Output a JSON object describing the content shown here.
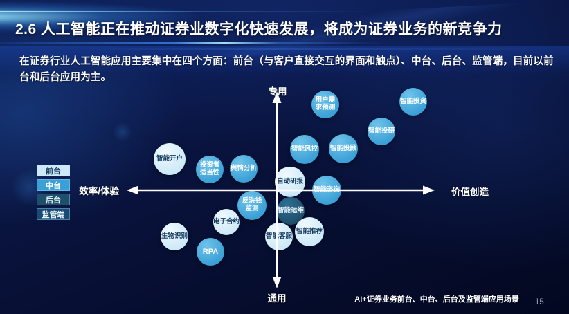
{
  "slide": {
    "title": "2.6 人工智能正在推动证券业数字化快速发展，将成为证券业务的新竞争力",
    "subtitle": "在证券行业人工智能应用主要集中在四个方面：前台（与客户直接交互的界面和触点）、中台、后台、监管端，目前以前台和后台应用为主。",
    "caption": "AI+证券业务前台、中台、后台及监管端应用场景",
    "page_number": "15"
  },
  "legend": {
    "items": [
      {
        "label": "前台",
        "tier": "front"
      },
      {
        "label": "中台",
        "tier": "mid"
      },
      {
        "label": "后台",
        "tier": "back"
      },
      {
        "label": "监管端",
        "tier": "regulator"
      }
    ]
  },
  "chart_data": {
    "type": "scatter",
    "title": "AI+证券业务前台、中台、后台及监管端应用场景",
    "axes": {
      "top": "专用",
      "bottom": "通用",
      "left": "效率/体验",
      "right": "价值创造"
    },
    "layout": {
      "center_x": 400,
      "center_y": 275,
      "x_range": [
        183,
        628
      ],
      "y_range": [
        132,
        417
      ],
      "legend_position": "middle-left"
    },
    "tier_colors": {
      "front": {
        "fill": "#cde9f8",
        "light": "#f0f9ff",
        "text": "#123a5e"
      },
      "mid": {
        "fill": "#3aa0d6",
        "light": "#6fc3ea",
        "text": "#ffffff"
      },
      "back": {
        "fill": "#1e4f6b",
        "light": "#2e6f93",
        "text": "#e8f4fb"
      },
      "regulator": {
        "fill": "#1a4a74",
        "light": "#255d89",
        "text": "#e8f4fb"
      }
    },
    "bubbles": [
      {
        "label": "智能开户",
        "x": 245,
        "y": 230,
        "r": 23,
        "tier": "front"
      },
      {
        "label": "投资者\n适当性",
        "x": 303,
        "y": 245,
        "r": 20,
        "tier": "mid"
      },
      {
        "label": "舆情分析",
        "x": 352,
        "y": 244,
        "r": 20,
        "tier": "mid"
      },
      {
        "label": "用户需\n求预测",
        "x": 470,
        "y": 151,
        "r": 20,
        "tier": "mid"
      },
      {
        "label": "智能投资",
        "x": 597,
        "y": 147,
        "r": 20,
        "tier": "mid"
      },
      {
        "label": "智能投研",
        "x": 551,
        "y": 190,
        "r": 20,
        "tier": "mid"
      },
      {
        "label": "智能风控",
        "x": 440,
        "y": 216,
        "r": 21,
        "tier": "mid"
      },
      {
        "label": "智能投顾",
        "x": 496,
        "y": 215,
        "r": 21,
        "tier": "mid"
      },
      {
        "label": "自动研报",
        "x": 419,
        "y": 263,
        "r": 22,
        "tier": "front"
      },
      {
        "label": "智能咨询",
        "x": 472,
        "y": 275,
        "r": 21,
        "tier": "mid"
      },
      {
        "label": "智能运维",
        "x": 420,
        "y": 305,
        "r": 20,
        "tier": "back"
      },
      {
        "label": "反洗钱\n监测",
        "x": 364,
        "y": 297,
        "r": 21,
        "tier": "mid"
      },
      {
        "label": "电子合约",
        "x": 327,
        "y": 321,
        "r": 19,
        "tier": "front"
      },
      {
        "label": "智能客服",
        "x": 403,
        "y": 342,
        "r": 20,
        "tier": "front"
      },
      {
        "label": "智能推荐",
        "x": 447,
        "y": 335,
        "r": 21,
        "tier": "front"
      },
      {
        "label": "生物识别",
        "x": 252,
        "y": 342,
        "r": 20,
        "tier": "front"
      },
      {
        "label": "RPA",
        "x": 304,
        "y": 364,
        "r": 20,
        "tier": "mid"
      }
    ]
  }
}
